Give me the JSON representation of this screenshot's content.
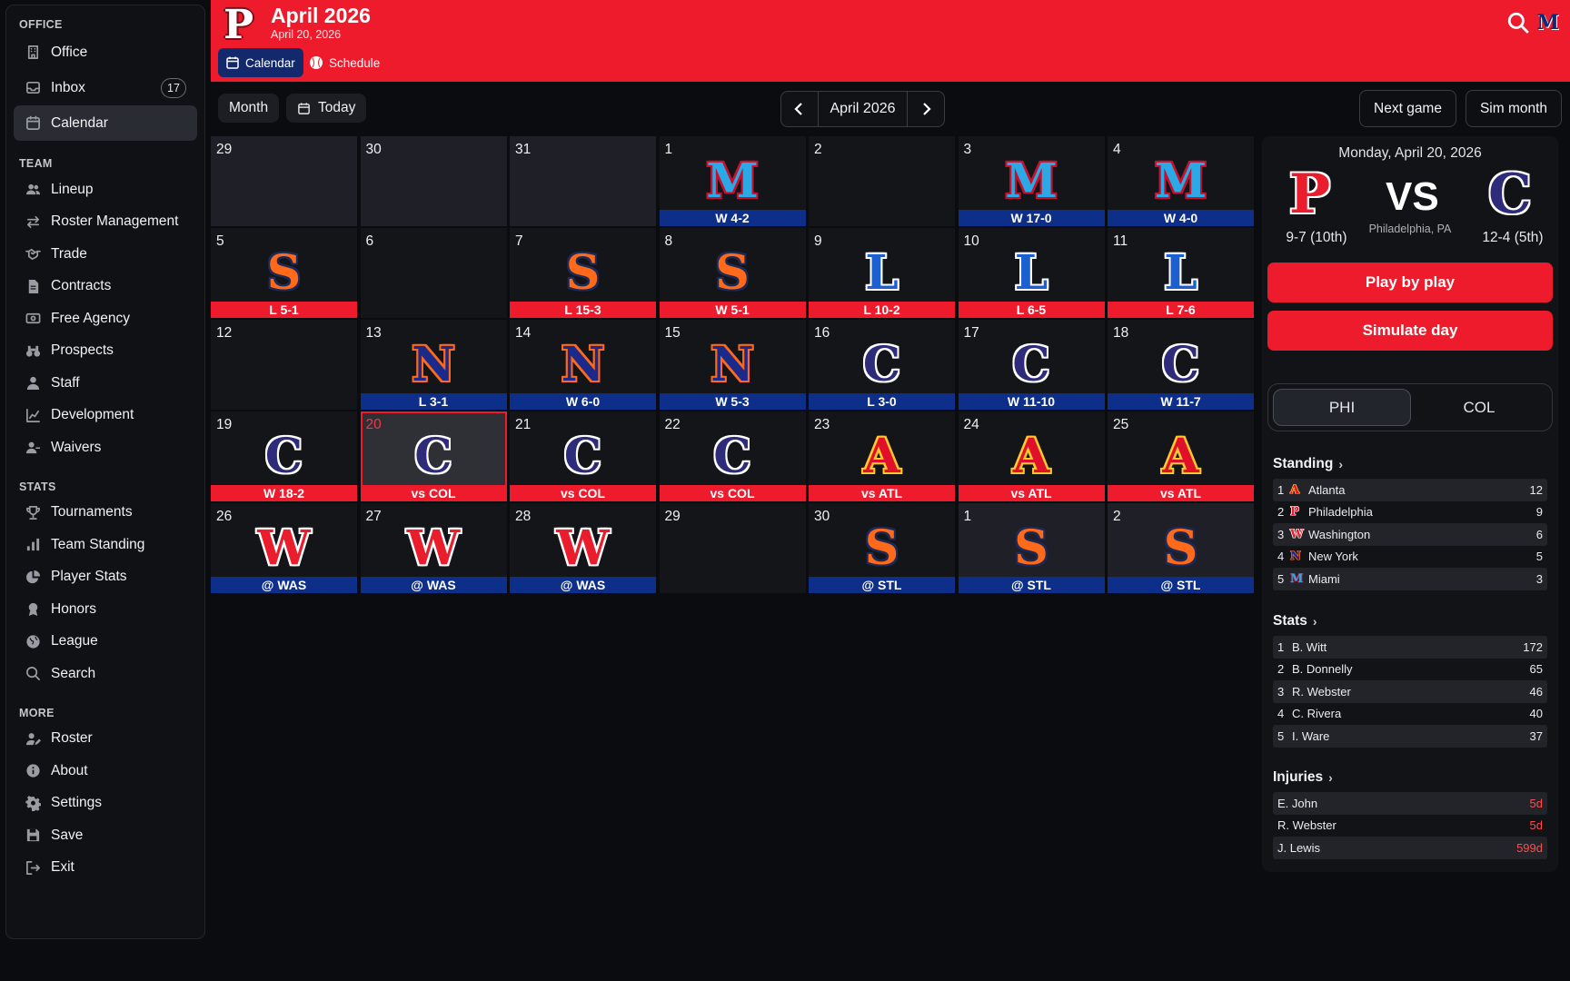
{
  "sidebar": {
    "sections": [
      {
        "title": "OFFICE",
        "items": [
          {
            "label": "Office",
            "icon": "building-icon"
          },
          {
            "label": "Inbox",
            "icon": "inbox-icon",
            "count": "17"
          },
          {
            "label": "Calendar",
            "icon": "calendar-icon",
            "active": true
          }
        ]
      },
      {
        "title": "TEAM",
        "items": [
          {
            "label": "Lineup",
            "icon": "users-icon"
          },
          {
            "label": "Roster Management",
            "icon": "swap-icon"
          },
          {
            "label": "Trade",
            "icon": "handshake-icon"
          },
          {
            "label": "Contracts",
            "icon": "document-icon"
          },
          {
            "label": "Free Agency",
            "icon": "money-icon"
          },
          {
            "label": "Prospects",
            "icon": "binoculars-icon"
          },
          {
            "label": "Staff",
            "icon": "person-icon"
          },
          {
            "label": "Development",
            "icon": "chart-line-icon"
          },
          {
            "label": "Waivers",
            "icon": "user-minus-icon"
          }
        ]
      },
      {
        "title": "STATS",
        "items": [
          {
            "label": "Tournaments",
            "icon": "trophy-icon"
          },
          {
            "label": "Team Standing",
            "icon": "bar-chart-icon"
          },
          {
            "label": "Player Stats",
            "icon": "pie-chart-icon"
          },
          {
            "label": "Honors",
            "icon": "award-icon"
          },
          {
            "label": "League",
            "icon": "globe-icon"
          },
          {
            "label": "Search",
            "icon": "search-icon"
          }
        ]
      },
      {
        "title": "MORE",
        "items": [
          {
            "label": "Roster",
            "icon": "user-edit-icon"
          },
          {
            "label": "About",
            "icon": "info-icon"
          },
          {
            "label": "Settings",
            "icon": "gear-icon"
          },
          {
            "label": "Save",
            "icon": "save-icon"
          },
          {
            "label": "Exit",
            "icon": "exit-icon"
          }
        ]
      }
    ]
  },
  "header": {
    "logo": "P",
    "title": "April 2026",
    "subtitle": "April 20, 2026",
    "tabs": [
      {
        "label": "Calendar",
        "icon": "calendar-icon",
        "active": true
      },
      {
        "label": "Schedule",
        "icon": "baseball-icon",
        "active": false
      }
    ],
    "team_mini": "M"
  },
  "toolbar": {
    "month_label": "Month",
    "today_label": "Today",
    "current_month": "April 2026",
    "next_game_label": "Next game",
    "sim_month_label": "Sim month"
  },
  "calendar": {
    "weeks": [
      [
        {
          "day": "29",
          "other": true
        },
        {
          "day": "30",
          "other": true
        },
        {
          "day": "31",
          "other": true
        },
        {
          "day": "1",
          "team": "M",
          "result": "W 4-2",
          "color": "blue"
        },
        {
          "day": "2"
        },
        {
          "day": "3",
          "team": "M",
          "result": "W 17-0",
          "color": "blue"
        },
        {
          "day": "4",
          "team": "M",
          "result": "W 4-0",
          "color": "blue"
        }
      ],
      [
        {
          "day": "5",
          "team": "S",
          "result": "L 5-1",
          "color": "red"
        },
        {
          "day": "6"
        },
        {
          "day": "7",
          "team": "S",
          "result": "L 15-3",
          "color": "red"
        },
        {
          "day": "8",
          "team": "S",
          "result": "W 5-1",
          "color": "red"
        },
        {
          "day": "9",
          "team": "L",
          "result": "L 10-2",
          "color": "red"
        },
        {
          "day": "10",
          "team": "L",
          "result": "L 6-5",
          "color": "red"
        },
        {
          "day": "11",
          "team": "L",
          "result": "L 7-6",
          "color": "red"
        }
      ],
      [
        {
          "day": "12"
        },
        {
          "day": "13",
          "team": "N",
          "result": "L 3-1",
          "color": "blue"
        },
        {
          "day": "14",
          "team": "N",
          "result": "W 6-0",
          "color": "blue"
        },
        {
          "day": "15",
          "team": "N",
          "result": "W 5-3",
          "color": "blue"
        },
        {
          "day": "16",
          "team": "C",
          "result": "L 3-0",
          "color": "blue"
        },
        {
          "day": "17",
          "team": "C",
          "result": "W 11-10",
          "color": "blue"
        },
        {
          "day": "18",
          "team": "C",
          "result": "W 11-7",
          "color": "blue"
        }
      ],
      [
        {
          "day": "19",
          "team": "C",
          "result": "W 18-2",
          "color": "red"
        },
        {
          "day": "20",
          "team": "C",
          "result": "vs COL",
          "color": "red",
          "today": true
        },
        {
          "day": "21",
          "team": "C",
          "result": "vs COL",
          "color": "red"
        },
        {
          "day": "22",
          "team": "C",
          "result": "vs COL",
          "color": "red"
        },
        {
          "day": "23",
          "team": "A",
          "result": "vs ATL",
          "color": "red"
        },
        {
          "day": "24",
          "team": "A",
          "result": "vs ATL",
          "color": "red"
        },
        {
          "day": "25",
          "team": "A",
          "result": "vs ATL",
          "color": "red"
        }
      ],
      [
        {
          "day": "26",
          "team": "W",
          "result": "@ WAS",
          "color": "blue"
        },
        {
          "day": "27",
          "team": "W",
          "result": "@ WAS",
          "color": "blue"
        },
        {
          "day": "28",
          "team": "W",
          "result": "@ WAS",
          "color": "blue"
        },
        {
          "day": "29"
        },
        {
          "day": "30",
          "team": "S",
          "result": "@ STL",
          "color": "blue"
        },
        {
          "day": "1",
          "team": "S",
          "result": "@ STL",
          "color": "blue",
          "other": true
        },
        {
          "day": "2",
          "team": "S",
          "result": "@ STL",
          "color": "blue",
          "other": true
        }
      ]
    ]
  },
  "team_colors": {
    "M": {
      "fill": "#2aa9e6",
      "stroke": "#c8102e"
    },
    "S": {
      "fill": "#ff6a1a",
      "stroke": "#1c2a5a"
    },
    "L": {
      "fill": "#1c5fd1",
      "stroke": "#ffffff"
    },
    "N": {
      "fill": "#1b2a8a",
      "stroke": "#ff6a1a"
    },
    "C": {
      "fill": "#2e2c7a",
      "stroke": "#ffffff"
    },
    "A": {
      "fill": "#e0102b",
      "stroke": "#ffc72c"
    },
    "W": {
      "fill": "#ea1d2c",
      "stroke": "#ffffff"
    },
    "P": {
      "fill": "#ea1d2c",
      "stroke": "#ffffff"
    }
  },
  "matchup": {
    "date": "Monday, April 20, 2026",
    "home_logo": "P",
    "home_record": "9-7 (10th)",
    "vs": "VS",
    "venue": "Philadelphia, PA",
    "away_logo": "C",
    "away_record": "12-4 (5th)",
    "play_label": "Play by play",
    "simulate_label": "Simulate day",
    "toggle": [
      {
        "label": "PHI",
        "active": true
      },
      {
        "label": "COL",
        "active": false
      }
    ]
  },
  "standing": {
    "title": "Standing",
    "rows": [
      {
        "rank": "1",
        "logo": "A",
        "name": "Atlanta",
        "value": "12"
      },
      {
        "rank": "2",
        "logo": "P",
        "name": "Philadelphia",
        "value": "9"
      },
      {
        "rank": "3",
        "logo": "W",
        "name": "Washington",
        "value": "6"
      },
      {
        "rank": "4",
        "logo": "N",
        "name": "New York",
        "value": "5"
      },
      {
        "rank": "5",
        "logo": "M",
        "name": "Miami",
        "value": "3"
      }
    ]
  },
  "stats": {
    "title": "Stats",
    "rows": [
      {
        "rank": "1",
        "name": "B. Witt",
        "value": "172"
      },
      {
        "rank": "2",
        "name": "B. Donnelly",
        "value": "65"
      },
      {
        "rank": "3",
        "name": "R. Webster",
        "value": "46"
      },
      {
        "rank": "4",
        "name": "C. Rivera",
        "value": "40"
      },
      {
        "rank": "5",
        "name": "I. Ware",
        "value": "37"
      }
    ]
  },
  "injuries": {
    "title": "Injuries",
    "rows": [
      {
        "name": "E. John",
        "value": "5d"
      },
      {
        "name": "R. Webster",
        "value": "5d"
      },
      {
        "name": "J. Lewis",
        "value": "599d"
      }
    ]
  }
}
